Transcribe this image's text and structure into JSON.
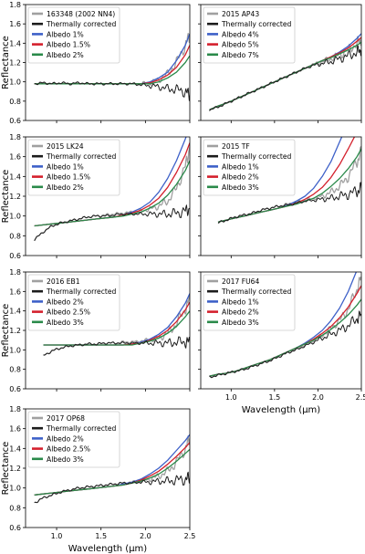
{
  "chart_data": {
    "type": "line",
    "ylabel": "Reflectance",
    "xlabel": "Wavelength (μm)",
    "xlim": [
      0.65,
      2.5
    ],
    "ylim": [
      0.6,
      1.8
    ],
    "xticks": [
      "1.0",
      "1.5",
      "2.0",
      "2.5"
    ],
    "yticks": [
      "0.6",
      "0.8",
      "1.0",
      "1.2",
      "1.4",
      "1.6",
      "1.8"
    ],
    "legend_position": "top-left",
    "colors": {
      "original": "#a0a0a0",
      "corrected": "#1c1c1c",
      "albedo_low": "#3d60c8",
      "albedo_mid": "#d4202c",
      "albedo_high": "#2a8a4a"
    },
    "panels": [
      {
        "title": "163348 (2002 NN4)",
        "corrected_label": "Thermally corrected",
        "albedo_labels": [
          "Albedo 1%",
          "Albedo 1.5%",
          "Albedo 2%"
        ],
        "wavelengths": [
          0.75,
          0.85,
          0.95,
          1.05,
          1.15,
          1.25,
          1.35,
          1.45,
          1.55,
          1.65,
          1.75,
          1.85,
          1.95,
          2.05,
          2.15,
          2.25,
          2.35,
          2.45,
          2.5
        ],
        "original": [
          0.98,
          0.99,
          0.98,
          0.99,
          0.98,
          0.99,
          0.98,
          0.98,
          0.98,
          0.98,
          0.98,
          0.98,
          0.98,
          0.99,
          1.02,
          1.08,
          1.2,
          1.38,
          1.48
        ],
        "corrected": [
          0.98,
          0.99,
          0.98,
          0.99,
          0.98,
          0.99,
          0.98,
          0.98,
          0.98,
          0.98,
          0.98,
          0.98,
          0.97,
          0.96,
          0.95,
          0.93,
          0.92,
          0.9,
          0.86
        ],
        "albedo_series": [
          [
            0.98,
            0.98,
            0.98,
            0.98,
            0.98,
            0.98,
            0.98,
            0.98,
            0.98,
            0.98,
            0.98,
            0.98,
            0.98,
            1.0,
            1.04,
            1.1,
            1.22,
            1.38,
            1.5
          ],
          [
            0.98,
            0.98,
            0.98,
            0.98,
            0.98,
            0.98,
            0.98,
            0.98,
            0.98,
            0.98,
            0.98,
            0.98,
            0.98,
            0.99,
            1.02,
            1.07,
            1.15,
            1.28,
            1.38
          ],
          [
            0.98,
            0.98,
            0.98,
            0.98,
            0.98,
            0.98,
            0.98,
            0.98,
            0.98,
            0.98,
            0.98,
            0.98,
            0.98,
            0.98,
            1.0,
            1.04,
            1.1,
            1.2,
            1.27
          ]
        ]
      },
      {
        "title": "2015 AP43",
        "corrected_label": "Thermally corrected",
        "albedo_labels": [
          "Albedo 4%",
          "Albedo 5%",
          "Albedo 7%"
        ],
        "wavelengths": [
          0.75,
          0.85,
          0.95,
          1.05,
          1.15,
          1.25,
          1.35,
          1.45,
          1.55,
          1.65,
          1.75,
          1.85,
          1.95,
          2.05,
          2.15,
          2.25,
          2.35,
          2.45,
          2.5
        ],
        "original": [
          0.71,
          0.74,
          0.78,
          0.82,
          0.86,
          0.9,
          0.94,
          0.98,
          1.02,
          1.06,
          1.1,
          1.14,
          1.18,
          1.21,
          1.24,
          1.28,
          1.33,
          1.4,
          1.44
        ],
        "corrected": [
          0.71,
          0.74,
          0.78,
          0.82,
          0.86,
          0.9,
          0.94,
          0.98,
          1.02,
          1.06,
          1.1,
          1.14,
          1.17,
          1.19,
          1.21,
          1.24,
          1.27,
          1.31,
          1.33
        ],
        "albedo_series": [
          [
            0.71,
            0.75,
            0.78,
            0.82,
            0.86,
            0.9,
            0.94,
            0.98,
            1.02,
            1.06,
            1.1,
            1.14,
            1.18,
            1.22,
            1.26,
            1.31,
            1.37,
            1.45,
            1.5
          ],
          [
            0.71,
            0.75,
            0.78,
            0.82,
            0.86,
            0.9,
            0.94,
            0.98,
            1.02,
            1.06,
            1.1,
            1.14,
            1.18,
            1.22,
            1.26,
            1.3,
            1.35,
            1.42,
            1.46
          ],
          [
            0.71,
            0.75,
            0.78,
            0.82,
            0.86,
            0.9,
            0.94,
            0.98,
            1.02,
            1.06,
            1.1,
            1.14,
            1.18,
            1.22,
            1.25,
            1.29,
            1.33,
            1.38,
            1.41
          ]
        ]
      },
      {
        "title": "2015 LK24",
        "corrected_label": "Thermally corrected",
        "albedo_labels": [
          "Albedo 1%",
          "Albedo 1.5%",
          "Albedo 2%"
        ],
        "wavelengths": [
          0.75,
          0.85,
          0.95,
          1.05,
          1.15,
          1.25,
          1.35,
          1.45,
          1.55,
          1.65,
          1.75,
          1.85,
          1.95,
          2.05,
          2.15,
          2.25,
          2.35,
          2.45,
          2.5
        ],
        "original": [
          0.76,
          0.84,
          0.9,
          0.93,
          0.95,
          0.97,
          0.99,
          1.0,
          1.01,
          1.02,
          1.03,
          1.04,
          1.05,
          1.07,
          1.1,
          1.15,
          1.28,
          1.5,
          1.7
        ],
        "corrected": [
          0.76,
          0.84,
          0.9,
          0.93,
          0.95,
          0.97,
          0.99,
          1.0,
          1.0,
          1.01,
          1.02,
          1.02,
          1.02,
          1.02,
          1.02,
          1.02,
          1.03,
          1.05,
          1.08
        ],
        "albedo_series": [
          [
            0.9,
            0.91,
            0.92,
            0.93,
            0.94,
            0.95,
            0.96,
            0.97,
            0.98,
            0.99,
            1.01,
            1.04,
            1.08,
            1.14,
            1.24,
            1.38,
            1.56,
            1.78,
            1.9
          ],
          [
            0.9,
            0.91,
            0.92,
            0.93,
            0.94,
            0.95,
            0.96,
            0.97,
            0.98,
            0.99,
            1.01,
            1.03,
            1.06,
            1.11,
            1.18,
            1.29,
            1.44,
            1.62,
            1.74
          ],
          [
            0.9,
            0.91,
            0.92,
            0.93,
            0.94,
            0.95,
            0.96,
            0.97,
            0.98,
            0.99,
            1.0,
            1.02,
            1.04,
            1.08,
            1.13,
            1.21,
            1.32,
            1.46,
            1.56
          ]
        ]
      },
      {
        "title": "2015 TF",
        "corrected_label": "Thermally corrected",
        "albedo_labels": [
          "Albedo 1%",
          "Albedo 2%",
          "Albedo 3%"
        ],
        "wavelengths": [
          0.85,
          0.95,
          1.05,
          1.15,
          1.25,
          1.35,
          1.45,
          1.55,
          1.65,
          1.75,
          1.85,
          1.95,
          2.05,
          2.15,
          2.25,
          2.35,
          2.45,
          2.5
        ],
        "original": [
          0.93,
          0.96,
          0.99,
          1.01,
          1.03,
          1.06,
          1.08,
          1.1,
          1.12,
          1.14,
          1.16,
          1.18,
          1.2,
          1.24,
          1.3,
          1.4,
          1.55,
          1.65
        ],
        "corrected": [
          0.93,
          0.96,
          0.99,
          1.01,
          1.03,
          1.06,
          1.08,
          1.1,
          1.11,
          1.13,
          1.15,
          1.16,
          1.17,
          1.18,
          1.2,
          1.22,
          1.25,
          1.28
        ],
        "albedo_series": [
          [
            0.94,
            0.96,
            0.98,
            1.0,
            1.02,
            1.04,
            1.06,
            1.08,
            1.11,
            1.15,
            1.2,
            1.28,
            1.4,
            1.55,
            1.75,
            1.95,
            2.1,
            2.2
          ],
          [
            0.94,
            0.96,
            0.98,
            1.0,
            1.02,
            1.04,
            1.06,
            1.08,
            1.1,
            1.13,
            1.17,
            1.22,
            1.29,
            1.39,
            1.52,
            1.68,
            1.85,
            1.95
          ],
          [
            0.94,
            0.96,
            0.98,
            1.0,
            1.02,
            1.04,
            1.06,
            1.08,
            1.1,
            1.12,
            1.15,
            1.18,
            1.23,
            1.3,
            1.38,
            1.48,
            1.6,
            1.68
          ]
        ]
      },
      {
        "title": "2016 EB1",
        "corrected_label": "Thermally corrected",
        "albedo_labels": [
          "Albedo 2%",
          "Albedo 2.5%",
          "Albedo 3%"
        ],
        "wavelengths": [
          0.85,
          0.95,
          1.05,
          1.15,
          1.25,
          1.35,
          1.45,
          1.55,
          1.65,
          1.75,
          1.85,
          1.95,
          2.05,
          2.15,
          2.25,
          2.35,
          2.45,
          2.5
        ],
        "original": [
          0.94,
          0.99,
          1.02,
          1.04,
          1.05,
          1.06,
          1.06,
          1.07,
          1.07,
          1.08,
          1.08,
          1.09,
          1.1,
          1.12,
          1.17,
          1.27,
          1.42,
          1.52
        ],
        "corrected": [
          0.94,
          0.99,
          1.02,
          1.04,
          1.05,
          1.06,
          1.06,
          1.07,
          1.07,
          1.07,
          1.07,
          1.07,
          1.07,
          1.07,
          1.07,
          1.08,
          1.08,
          1.08
        ],
        "albedo_series": [
          [
            1.05,
            1.05,
            1.05,
            1.05,
            1.05,
            1.05,
            1.05,
            1.05,
            1.05,
            1.05,
            1.06,
            1.08,
            1.11,
            1.16,
            1.23,
            1.34,
            1.48,
            1.58
          ],
          [
            1.05,
            1.05,
            1.05,
            1.05,
            1.05,
            1.05,
            1.05,
            1.05,
            1.05,
            1.05,
            1.06,
            1.07,
            1.1,
            1.14,
            1.2,
            1.29,
            1.41,
            1.49
          ],
          [
            1.05,
            1.05,
            1.05,
            1.05,
            1.05,
            1.05,
            1.05,
            1.05,
            1.05,
            1.05,
            1.05,
            1.07,
            1.09,
            1.12,
            1.17,
            1.24,
            1.34,
            1.4
          ]
        ]
      },
      {
        "title": "2017 FU64",
        "corrected_label": "Thermally corrected",
        "albedo_labels": [
          "Albedo 1%",
          "Albedo 2%",
          "Albedo 3%"
        ],
        "wavelengths": [
          0.75,
          0.85,
          0.95,
          1.05,
          1.15,
          1.25,
          1.35,
          1.45,
          1.55,
          1.65,
          1.75,
          1.85,
          1.95,
          2.05,
          2.15,
          2.25,
          2.35,
          2.45,
          2.5
        ],
        "original": [
          0.72,
          0.74,
          0.76,
          0.78,
          0.8,
          0.83,
          0.86,
          0.89,
          0.93,
          0.97,
          1.01,
          1.05,
          1.1,
          1.15,
          1.22,
          1.3,
          1.42,
          1.62,
          1.75
        ],
        "corrected": [
          0.72,
          0.74,
          0.76,
          0.78,
          0.8,
          0.83,
          0.86,
          0.89,
          0.93,
          0.97,
          1.0,
          1.04,
          1.08,
          1.12,
          1.16,
          1.2,
          1.25,
          1.32,
          1.36
        ],
        "albedo_series": [
          [
            0.73,
            0.75,
            0.76,
            0.78,
            0.81,
            0.84,
            0.87,
            0.9,
            0.94,
            0.98,
            1.02,
            1.07,
            1.13,
            1.2,
            1.3,
            1.43,
            1.6,
            1.82,
            1.95
          ],
          [
            0.73,
            0.75,
            0.76,
            0.78,
            0.81,
            0.84,
            0.87,
            0.9,
            0.94,
            0.98,
            1.02,
            1.06,
            1.11,
            1.17,
            1.24,
            1.33,
            1.44,
            1.58,
            1.66
          ],
          [
            0.73,
            0.75,
            0.76,
            0.78,
            0.81,
            0.84,
            0.87,
            0.9,
            0.94,
            0.98,
            1.02,
            1.06,
            1.1,
            1.15,
            1.21,
            1.28,
            1.36,
            1.46,
            1.52
          ]
        ]
      },
      {
        "title": "2017 OP68",
        "corrected_label": "Thermally corrected",
        "albedo_labels": [
          "Albedo 2%",
          "Albedo 2.5%",
          "Albedo 3%"
        ],
        "wavelengths": [
          0.75,
          0.85,
          0.95,
          1.05,
          1.15,
          1.25,
          1.35,
          1.45,
          1.55,
          1.65,
          1.75,
          1.85,
          1.95,
          2.05,
          2.15,
          2.25,
          2.35,
          2.45,
          2.5
        ],
        "original": [
          0.85,
          0.9,
          0.93,
          0.96,
          0.98,
          1.0,
          1.01,
          1.02,
          1.03,
          1.04,
          1.05,
          1.06,
          1.07,
          1.09,
          1.12,
          1.17,
          1.26,
          1.4,
          1.5
        ],
        "corrected": [
          0.85,
          0.9,
          0.93,
          0.96,
          0.98,
          1.0,
          1.01,
          1.02,
          1.03,
          1.04,
          1.05,
          1.05,
          1.06,
          1.06,
          1.07,
          1.07,
          1.08,
          1.09,
          1.1
        ],
        "albedo_series": [
          [
            0.93,
            0.94,
            0.95,
            0.96,
            0.97,
            0.98,
            0.99,
            1.0,
            1.01,
            1.02,
            1.04,
            1.06,
            1.09,
            1.14,
            1.2,
            1.28,
            1.38,
            1.48,
            1.54
          ],
          [
            0.93,
            0.94,
            0.95,
            0.96,
            0.97,
            0.98,
            0.99,
            1.0,
            1.01,
            1.02,
            1.03,
            1.05,
            1.08,
            1.12,
            1.17,
            1.24,
            1.32,
            1.41,
            1.46
          ],
          [
            0.93,
            0.94,
            0.95,
            0.96,
            0.97,
            0.98,
            0.99,
            1.0,
            1.01,
            1.02,
            1.03,
            1.05,
            1.07,
            1.1,
            1.14,
            1.2,
            1.27,
            1.35,
            1.39
          ]
        ]
      }
    ]
  }
}
